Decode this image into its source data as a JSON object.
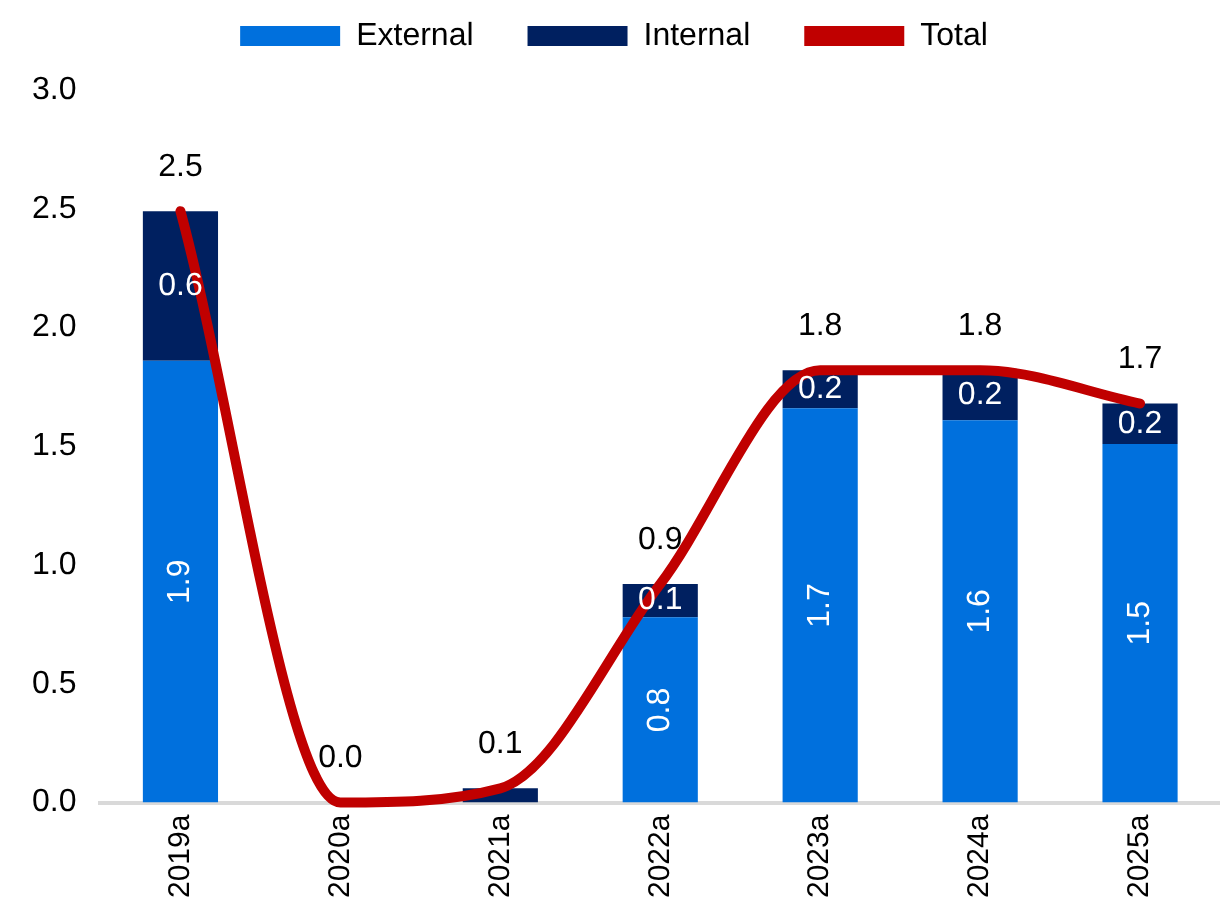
{
  "chart_data": {
    "type": "bar",
    "stacked": true,
    "categories": [
      "2019a",
      "2020a",
      "2021a",
      "2022a",
      "2023a",
      "2024a",
      "2025a"
    ],
    "series": [
      {
        "name": "External",
        "color": "#0070dd",
        "values": [
          1.86,
          0,
          0,
          0.78,
          1.66,
          1.61,
          1.51
        ],
        "value_labels": [
          "1.9",
          null,
          null,
          "0.8",
          "1.7",
          "1.6",
          "1.5"
        ]
      },
      {
        "name": "Internal",
        "color": "#002060",
        "values": [
          0.63,
          0,
          0.06,
          0.14,
          0.16,
          0.21,
          0.17
        ],
        "value_labels": [
          "0.6",
          null,
          null,
          "0.1",
          "0.2",
          "0.2",
          "0.2"
        ]
      },
      {
        "name": "Total",
        "type": "line",
        "color": "#c00000",
        "values": [
          2.49,
          0,
          0.06,
          0.92,
          1.82,
          1.82,
          1.68
        ],
        "value_labels": [
          "2.5",
          "0.0",
          "0.1",
          "0.9",
          "1.8",
          "1.8",
          "1.7"
        ]
      }
    ],
    "ylim": [
      0,
      3
    ],
    "yticks": [
      {
        "value": 0,
        "label": "0.0"
      },
      {
        "value": 0.5,
        "label": "0.5"
      },
      {
        "value": 1,
        "label": "1.0"
      },
      {
        "value": 1.5,
        "label": "1.5"
      },
      {
        "value": 2,
        "label": "2.0"
      },
      {
        "value": 2.5,
        "label": "2.5"
      },
      {
        "value": 3,
        "label": "3.0"
      }
    ],
    "legend": "top",
    "marker": "none",
    "line_style": "solid"
  }
}
